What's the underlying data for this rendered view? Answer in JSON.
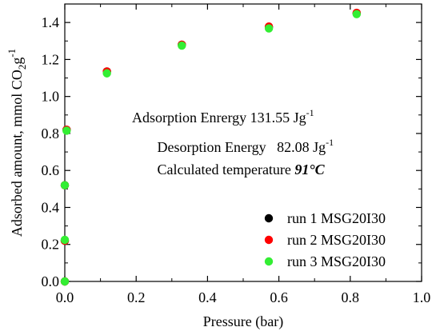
{
  "chart_data": {
    "type": "scatter",
    "xlabel": "Pressure (bar)",
    "ylabel_main": "Adsorbed amount, mmol CO",
    "ylabel_sub": "2",
    "ylabel_unit": "g",
    "ylabel_sup": "-1",
    "xlim": [
      0.0,
      1.0
    ],
    "ylim": [
      0.0,
      1.5
    ],
    "x_ticks": [
      "0.0",
      "0.2",
      "0.4",
      "0.6",
      "0.8",
      "1.0"
    ],
    "y_ticks": [
      "0.0",
      "0.2",
      "0.4",
      "0.6",
      "0.8",
      "1.0",
      "1.2",
      "1.4"
    ],
    "x_tick_values": [
      0.0,
      0.2,
      0.4,
      0.6,
      0.8,
      1.0
    ],
    "y_tick_values": [
      0.0,
      0.2,
      0.4,
      0.6,
      0.8,
      1.0,
      1.2,
      1.4
    ],
    "grid": false,
    "legend_position": "bottom-right",
    "series": [
      {
        "name": "run 1 MSG20I30",
        "color": "#000000",
        "x": [
          0.0,
          0.0,
          0.0,
          0.005,
          0.118,
          0.328,
          0.572,
          0.818
        ],
        "y": [
          0.0,
          0.22,
          0.52,
          0.82,
          1.135,
          1.28,
          1.375,
          1.45
        ]
      },
      {
        "name": "run 2 MSG20I30",
        "color": "#ff0000",
        "x": [
          0.0,
          0.0,
          0.0,
          0.005,
          0.118,
          0.328,
          0.572,
          0.818
        ],
        "y": [
          0.0,
          0.22,
          0.52,
          0.82,
          1.135,
          1.28,
          1.378,
          1.452
        ]
      },
      {
        "name": "run 3 MSG20I30",
        "color": "#33ee33",
        "x": [
          0.0,
          0.0,
          0.0,
          0.005,
          0.118,
          0.328,
          0.572,
          0.818
        ],
        "y": [
          0.0,
          0.225,
          0.52,
          0.815,
          1.125,
          1.275,
          1.368,
          1.445
        ]
      }
    ],
    "annotations": {
      "line1_text": "Adsorption Enrergy 131.55 Jg",
      "line1_sup": "-1",
      "line2_text": "Desorption Energy   82.08 Jg",
      "line2_sup": "-1",
      "line3_text": "Calculated temperature ",
      "line3_value": "91°C"
    }
  }
}
